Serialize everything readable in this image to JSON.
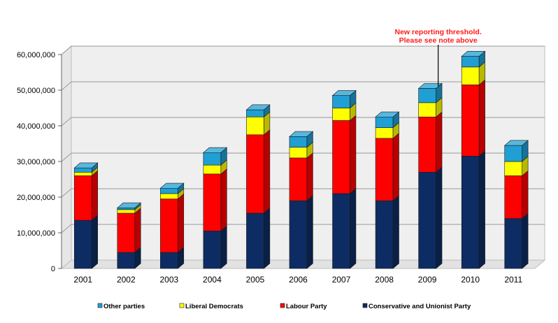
{
  "chart_data": {
    "type": "bar",
    "stacked": true,
    "three_d": true,
    "categories": [
      "2001",
      "2002",
      "2003",
      "2004",
      "2005",
      "2006",
      "2007",
      "2008",
      "2009",
      "2010",
      "2011"
    ],
    "series": [
      {
        "name": "Conservative and Unionist Party",
        "color": "#0c2c63",
        "values": [
          13500000,
          4500000,
          4500000,
          10500000,
          15500000,
          19000000,
          21000000,
          19000000,
          27000000,
          31500000,
          14000000
        ]
      },
      {
        "name": "Labour Party",
        "color": "#ff0000",
        "values": [
          12500000,
          11000000,
          15000000,
          16000000,
          22000000,
          12000000,
          20500000,
          17500000,
          15500000,
          20000000,
          12000000
        ]
      },
      {
        "name": "Liberal Democrats",
        "color": "#ffff00",
        "values": [
          1000000,
          1000000,
          1500000,
          2500000,
          5000000,
          3000000,
          3500000,
          3000000,
          4000000,
          5000000,
          4000000
        ]
      },
      {
        "name": "Other parties",
        "color": "#1f9fd4",
        "values": [
          1200000,
          500000,
          1500000,
          3500000,
          2000000,
          3000000,
          3500000,
          3000000,
          4000000,
          3000000,
          4500000
        ]
      }
    ],
    "y_ticks": [
      "0",
      "10,000,000",
      "20,000,000",
      "30,000,000",
      "40,000,000",
      "50,000,000",
      "60,000,000"
    ],
    "ylim": [
      0,
      60000000
    ],
    "legend_position": "bottom",
    "legend_order": [
      "Other parties",
      "Liberal Democrats",
      "Labour Party",
      "Conservative and Unionist Party"
    ],
    "annotation": {
      "lines": [
        "New reporting threshold.",
        "Please see note above"
      ],
      "color": "#ff1a1a",
      "category": "2009"
    },
    "grid": true
  }
}
